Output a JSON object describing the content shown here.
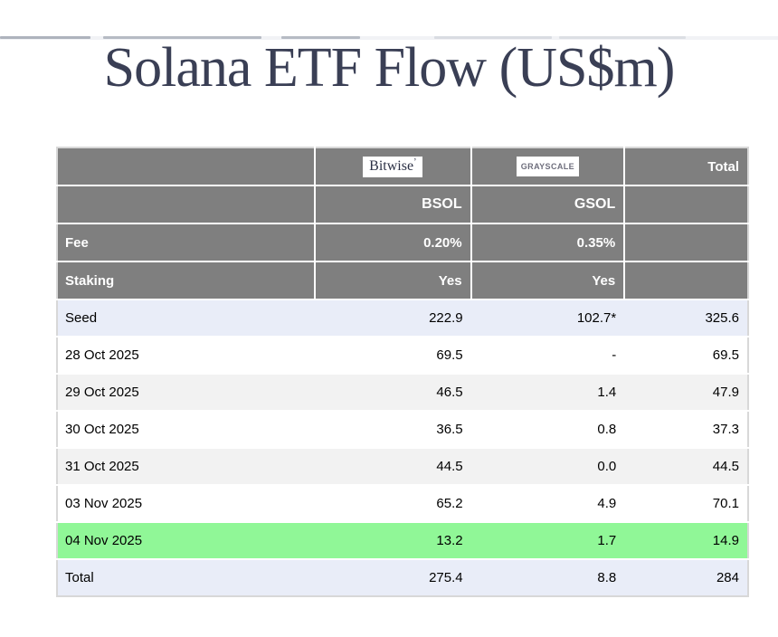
{
  "title": "Solana ETF Flow (US$m)",
  "colors": {
    "title_color": "#3a3f55",
    "header_gray": "#7f7f7f",
    "stripe_blue": "#e9edf8",
    "stripe_gray": "#f2f2f2",
    "highlight_green": "#90f797",
    "logo_bitwise_text": "#2c3145",
    "logo_grayscale_text": "#6e6e7c"
  },
  "chart_data": {
    "type": "table",
    "title": "Solana ETF Flow (US$m)",
    "labels": {
      "total_column": "Total",
      "fee_row": "Fee",
      "staking_row": "Staking"
    },
    "providers": [
      {
        "name": "Bitwise",
        "logo_mark": "’",
        "ticker": "BSOL",
        "fee": "0.20%",
        "staking": "Yes"
      },
      {
        "name": "GRAYSCALE",
        "ticker": "GSOL",
        "fee": "0.35%",
        "staking": "Yes"
      }
    ],
    "rows": [
      {
        "label": "Seed",
        "bsol": "222.9",
        "gsol": "102.7*",
        "total": "325.6",
        "highlight": "blue"
      },
      {
        "label": "28 Oct 2025",
        "bsol": "69.5",
        "gsol": "-",
        "total": "69.5",
        "highlight": "white"
      },
      {
        "label": "29 Oct 2025",
        "bsol": "46.5",
        "gsol": "1.4",
        "total": "47.9",
        "highlight": "gray"
      },
      {
        "label": "30 Oct 2025",
        "bsol": "36.5",
        "gsol": "0.8",
        "total": "37.3",
        "highlight": "white"
      },
      {
        "label": "31 Oct 2025",
        "bsol": "44.5",
        "gsol": "0.0",
        "total": "44.5",
        "highlight": "gray"
      },
      {
        "label": "03 Nov 2025",
        "bsol": "65.2",
        "gsol": "4.9",
        "total": "70.1",
        "highlight": "white"
      },
      {
        "label": "04 Nov 2025",
        "bsol": "13.2",
        "gsol": "1.7",
        "total": "14.9",
        "highlight": "green"
      },
      {
        "label": "Total",
        "bsol": "275.4",
        "gsol": "8.8",
        "total": "284",
        "highlight": "blue"
      }
    ]
  }
}
